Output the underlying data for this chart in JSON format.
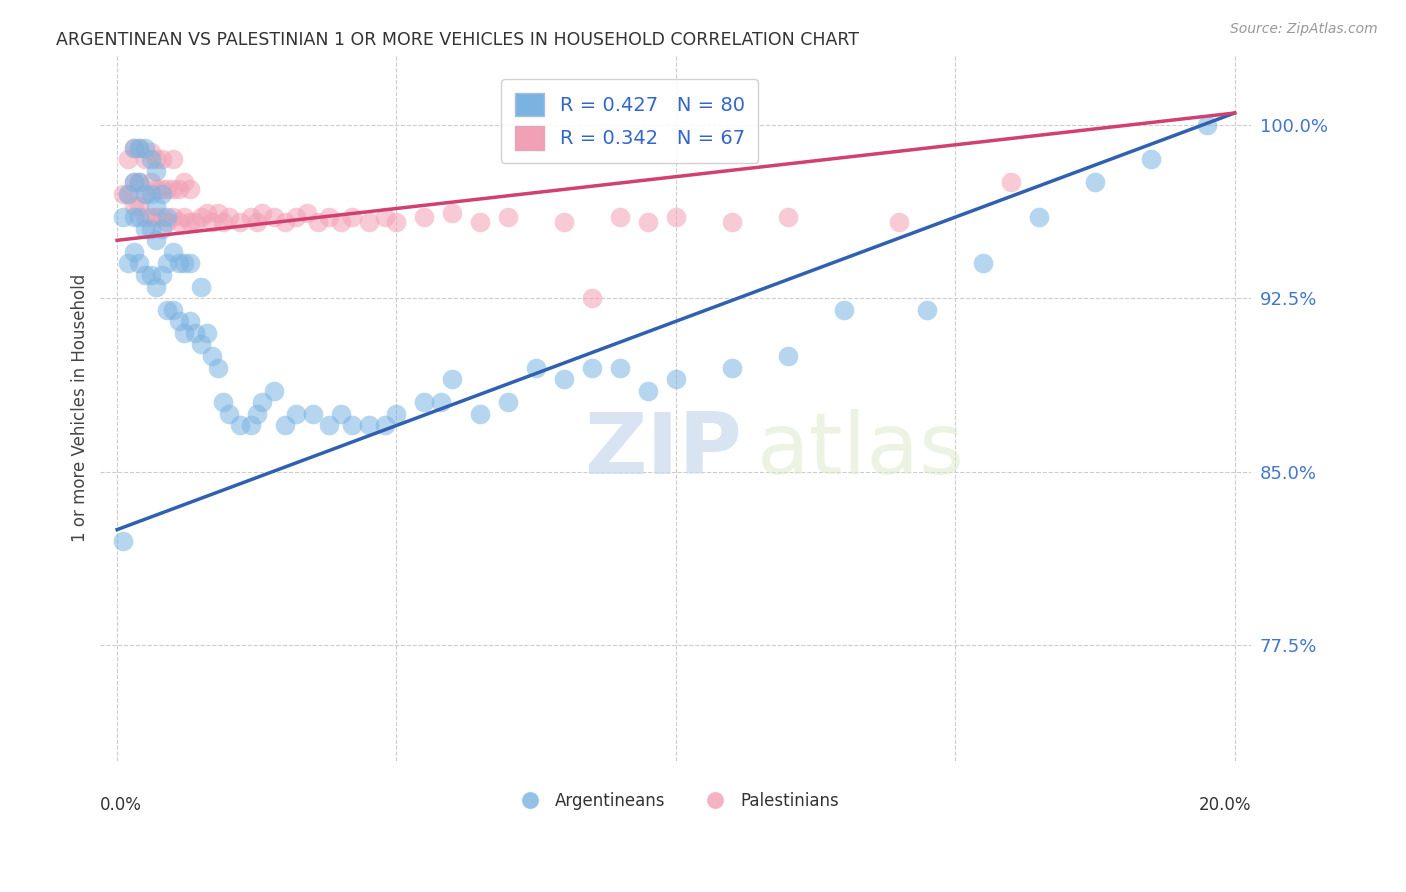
{
  "title": "ARGENTINEAN VS PALESTINIAN 1 OR MORE VEHICLES IN HOUSEHOLD CORRELATION CHART",
  "source": "Source: ZipAtlas.com",
  "ylabel": "1 or more Vehicles in Household",
  "ytick_labels": [
    "100.0%",
    "92.5%",
    "85.0%",
    "77.5%"
  ],
  "ytick_values": [
    1.0,
    0.925,
    0.85,
    0.775
  ],
  "xlim": [
    0.0,
    0.2
  ],
  "ylim": [
    0.725,
    1.03
  ],
  "blue_R": 0.427,
  "blue_N": 80,
  "pink_R": 0.342,
  "pink_N": 67,
  "blue_color": "#7ab3e0",
  "pink_color": "#f2a0b5",
  "blue_line_color": "#3060b0",
  "pink_line_color": "#d04070",
  "legend_label_blue": "Argentineans",
  "legend_label_pink": "Palestinians",
  "watermark_ZIP": "ZIP",
  "watermark_atlas": "atlas",
  "blue_line_x0": 0.0,
  "blue_line_y0": 0.825,
  "blue_line_x1": 0.2,
  "blue_line_y1": 1.005,
  "pink_line_x0": 0.0,
  "pink_line_y0": 0.95,
  "pink_line_x1": 0.2,
  "pink_line_y1": 1.005,
  "blue_x": [
    0.001,
    0.001,
    0.002,
    0.002,
    0.003,
    0.003,
    0.003,
    0.003,
    0.004,
    0.004,
    0.004,
    0.004,
    0.005,
    0.005,
    0.005,
    0.005,
    0.006,
    0.006,
    0.006,
    0.006,
    0.007,
    0.007,
    0.007,
    0.007,
    0.008,
    0.008,
    0.008,
    0.009,
    0.009,
    0.009,
    0.01,
    0.01,
    0.011,
    0.011,
    0.012,
    0.012,
    0.013,
    0.013,
    0.014,
    0.015,
    0.015,
    0.016,
    0.017,
    0.018,
    0.019,
    0.02,
    0.022,
    0.024,
    0.025,
    0.026,
    0.028,
    0.03,
    0.032,
    0.035,
    0.038,
    0.04,
    0.042,
    0.045,
    0.048,
    0.05,
    0.055,
    0.058,
    0.06,
    0.065,
    0.07,
    0.075,
    0.08,
    0.085,
    0.09,
    0.095,
    0.1,
    0.11,
    0.12,
    0.13,
    0.145,
    0.155,
    0.165,
    0.175,
    0.185,
    0.195
  ],
  "blue_y": [
    0.82,
    0.96,
    0.94,
    0.97,
    0.945,
    0.96,
    0.975,
    0.99,
    0.94,
    0.96,
    0.975,
    0.99,
    0.935,
    0.955,
    0.97,
    0.99,
    0.935,
    0.955,
    0.97,
    0.985,
    0.93,
    0.95,
    0.965,
    0.98,
    0.935,
    0.955,
    0.97,
    0.92,
    0.94,
    0.96,
    0.92,
    0.945,
    0.915,
    0.94,
    0.91,
    0.94,
    0.915,
    0.94,
    0.91,
    0.905,
    0.93,
    0.91,
    0.9,
    0.895,
    0.88,
    0.875,
    0.87,
    0.87,
    0.875,
    0.88,
    0.885,
    0.87,
    0.875,
    0.875,
    0.87,
    0.875,
    0.87,
    0.87,
    0.87,
    0.875,
    0.88,
    0.88,
    0.89,
    0.875,
    0.88,
    0.895,
    0.89,
    0.895,
    0.895,
    0.885,
    0.89,
    0.895,
    0.9,
    0.92,
    0.92,
    0.94,
    0.96,
    0.975,
    0.985,
    1.0
  ],
  "pink_x": [
    0.001,
    0.002,
    0.002,
    0.003,
    0.003,
    0.003,
    0.004,
    0.004,
    0.004,
    0.005,
    0.005,
    0.005,
    0.006,
    0.006,
    0.006,
    0.007,
    0.007,
    0.007,
    0.008,
    0.008,
    0.008,
    0.009,
    0.009,
    0.01,
    0.01,
    0.01,
    0.011,
    0.011,
    0.012,
    0.012,
    0.013,
    0.013,
    0.014,
    0.015,
    0.016,
    0.017,
    0.018,
    0.019,
    0.02,
    0.022,
    0.024,
    0.025,
    0.026,
    0.028,
    0.03,
    0.032,
    0.034,
    0.036,
    0.038,
    0.04,
    0.042,
    0.045,
    0.048,
    0.05,
    0.055,
    0.06,
    0.065,
    0.07,
    0.08,
    0.085,
    0.09,
    0.095,
    0.1,
    0.11,
    0.12,
    0.14,
    0.16
  ],
  "pink_y": [
    0.97,
    0.97,
    0.985,
    0.965,
    0.975,
    0.99,
    0.965,
    0.975,
    0.99,
    0.96,
    0.97,
    0.985,
    0.96,
    0.975,
    0.988,
    0.96,
    0.972,
    0.985,
    0.96,
    0.972,
    0.985,
    0.958,
    0.972,
    0.96,
    0.972,
    0.985,
    0.958,
    0.972,
    0.96,
    0.975,
    0.958,
    0.972,
    0.958,
    0.96,
    0.962,
    0.958,
    0.962,
    0.958,
    0.96,
    0.958,
    0.96,
    0.958,
    0.962,
    0.96,
    0.958,
    0.96,
    0.962,
    0.958,
    0.96,
    0.958,
    0.96,
    0.958,
    0.96,
    0.958,
    0.96,
    0.962,
    0.958,
    0.96,
    0.958,
    0.925,
    0.96,
    0.958,
    0.96,
    0.958,
    0.96,
    0.958,
    0.975
  ]
}
